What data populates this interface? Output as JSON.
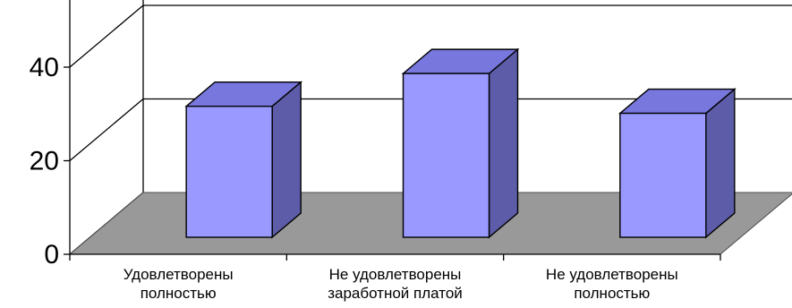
{
  "chart_data": {
    "type": "bar",
    "title": "",
    "xlabel": "",
    "ylabel": "",
    "ylim": [
      0,
      40
    ],
    "yticks": [
      0,
      20,
      40
    ],
    "grid": true,
    "three_d": true,
    "categories": [
      [
        "Удовлетворены",
        "полностью"
      ],
      [
        "Не удовлетворены",
        "заработной платой"
      ],
      [
        "Не удовлетворены",
        "полностью"
      ]
    ],
    "values": [
      28,
      35,
      26.5
    ],
    "colors": {
      "bar_front": "#9999ff",
      "bar_top": "#7777dd",
      "bar_side": "#5c5ca8",
      "floor": "#999999",
      "axis": "#000000"
    }
  }
}
